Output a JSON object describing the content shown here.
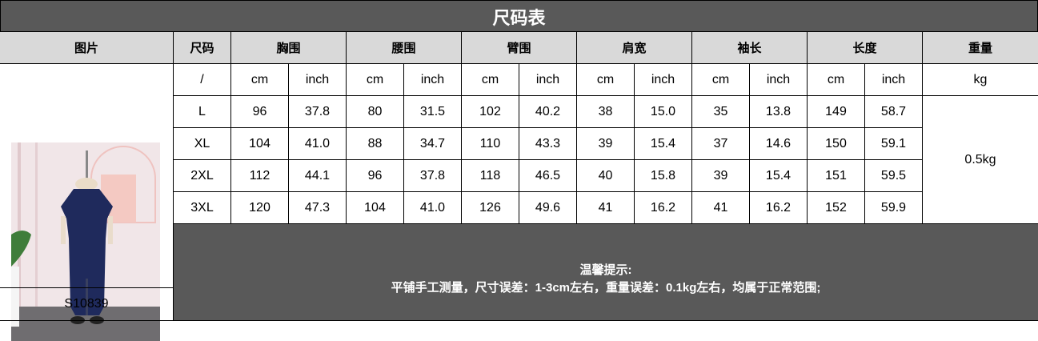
{
  "title": "尺码表",
  "headers": [
    "图片",
    "尺码",
    "胸围",
    "腰围",
    "臂围",
    "肩宽",
    "袖长",
    "长度",
    "重量"
  ],
  "units_row": {
    "size": "/",
    "units": [
      "cm",
      "inch",
      "cm",
      "inch",
      "cm",
      "inch",
      "cm",
      "inch",
      "cm",
      "inch",
      "cm",
      "inch"
    ],
    "weight_unit": "kg"
  },
  "rows": [
    {
      "size": "L",
      "values": [
        "96",
        "37.8",
        "80",
        "31.5",
        "102",
        "40.2",
        "38",
        "15.0",
        "35",
        "13.8",
        "149",
        "58.7"
      ]
    },
    {
      "size": "XL",
      "values": [
        "104",
        "41.0",
        "88",
        "34.7",
        "110",
        "43.3",
        "39",
        "15.4",
        "37",
        "14.6",
        "150",
        "59.1"
      ]
    },
    {
      "size": "2XL",
      "values": [
        "112",
        "44.1",
        "96",
        "37.8",
        "118",
        "46.5",
        "40",
        "15.8",
        "39",
        "15.4",
        "151",
        "59.5"
      ]
    },
    {
      "size": "3XL",
      "values": [
        "120",
        "47.3",
        "104",
        "41.0",
        "126",
        "49.6",
        "41",
        "16.2",
        "41",
        "16.2",
        "152",
        "59.9"
      ]
    }
  ],
  "weight": "0.5kg",
  "product_code": "S10839",
  "note": {
    "heading": "温馨提示:",
    "text": "平铺手工测量，尺寸误差：1-3cm左右，重量误差：0.1kg左右，均属于正常范围;"
  },
  "colors": {
    "header_bg": "#d9d9d9",
    "dark_bg": "#595959",
    "dress": "#1f2a5c"
  }
}
